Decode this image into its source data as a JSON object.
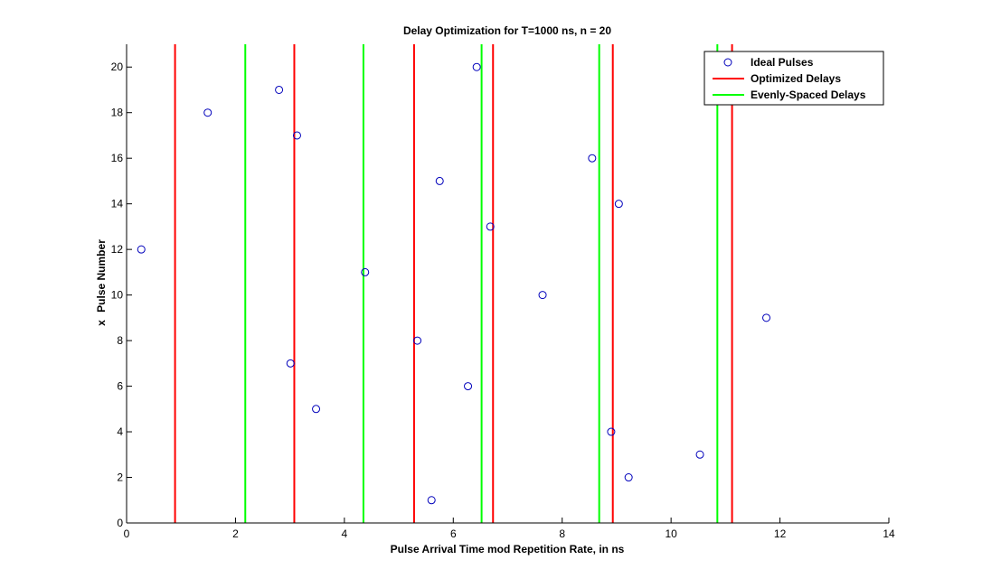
{
  "chart_data": {
    "type": "scatter",
    "title": "Delay Optimization for T=1000 ns, n = 20",
    "xlabel": "Pulse Arrival Time mod Repetition Rate, in ns",
    "ylabel": "Pulse Number",
    "ylabel_prefix": "x",
    "xlim": [
      0,
      14
    ],
    "ylim": [
      0,
      21
    ],
    "xticks": [
      0,
      2,
      4,
      6,
      8,
      10,
      12,
      14
    ],
    "yticks": [
      0,
      2,
      4,
      6,
      8,
      10,
      12,
      14,
      16,
      18,
      20
    ],
    "grid": false,
    "legend_position": "top-right",
    "series": [
      {
        "name": "Ideal Pulses",
        "kind": "markers",
        "color": "#0000bb",
        "points": [
          {
            "x": 5.6,
            "y": 1
          },
          {
            "x": 9.22,
            "y": 2
          },
          {
            "x": 10.53,
            "y": 3
          },
          {
            "x": 8.9,
            "y": 4
          },
          {
            "x": 3.48,
            "y": 5
          },
          {
            "x": 6.27,
            "y": 6
          },
          {
            "x": 3.01,
            "y": 7
          },
          {
            "x": 5.34,
            "y": 8
          },
          {
            "x": 11.75,
            "y": 9
          },
          {
            "x": 7.64,
            "y": 10
          },
          {
            "x": 4.38,
            "y": 11
          },
          {
            "x": 0.27,
            "y": 12
          },
          {
            "x": 6.68,
            "y": 13
          },
          {
            "x": 9.04,
            "y": 14
          },
          {
            "x": 5.75,
            "y": 15
          },
          {
            "x": 8.55,
            "y": 16
          },
          {
            "x": 3.13,
            "y": 17
          },
          {
            "x": 1.49,
            "y": 18
          },
          {
            "x": 2.8,
            "y": 19
          },
          {
            "x": 6.43,
            "y": 20
          }
        ]
      },
      {
        "name": "Optimized Delays",
        "kind": "vlines",
        "color": "#ff0000",
        "x": [
          0.89,
          3.08,
          5.28,
          6.73,
          8.93,
          11.12
        ]
      },
      {
        "name": "Evenly-Spaced Delays",
        "kind": "vlines",
        "color": "#00ff00",
        "x": [
          2.18,
          4.35,
          6.52,
          8.68,
          10.85
        ]
      }
    ]
  }
}
